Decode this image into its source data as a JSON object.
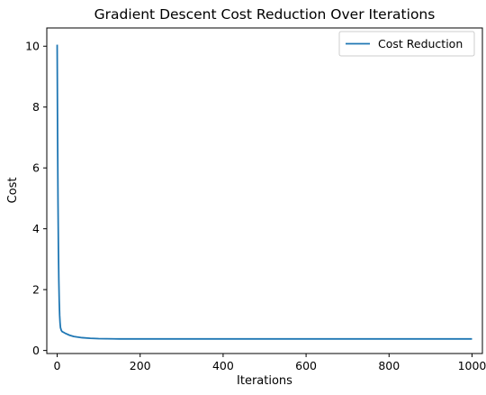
{
  "chart_data": {
    "type": "line",
    "title": "Gradient Descent Cost Reduction Over Iterations",
    "xlabel": "Iterations",
    "ylabel": "Cost",
    "xlim": [
      -25,
      1025
    ],
    "ylim": [
      -0.1,
      10.6
    ],
    "xticks": [
      0,
      200,
      400,
      600,
      800,
      1000
    ],
    "yticks": [
      0,
      2,
      4,
      6,
      8,
      10
    ],
    "grid": false,
    "legend": {
      "position": "top-right",
      "entries": [
        "Cost Reduction"
      ]
    },
    "series": [
      {
        "name": "Cost Reduction",
        "color": "#1f77b4",
        "x": [
          0,
          1,
          2,
          3,
          4,
          5,
          6,
          7,
          8,
          10,
          12,
          15,
          20,
          30,
          40,
          60,
          80,
          100,
          150,
          200,
          300,
          400,
          500,
          600,
          700,
          800,
          900,
          1000
        ],
        "y": [
          10.05,
          7.1,
          4.9,
          3.35,
          2.3,
          1.6,
          1.15,
          0.9,
          0.75,
          0.66,
          0.62,
          0.6,
          0.56,
          0.5,
          0.46,
          0.42,
          0.4,
          0.39,
          0.38,
          0.38,
          0.38,
          0.38,
          0.38,
          0.38,
          0.38,
          0.38,
          0.38,
          0.38
        ]
      }
    ]
  }
}
